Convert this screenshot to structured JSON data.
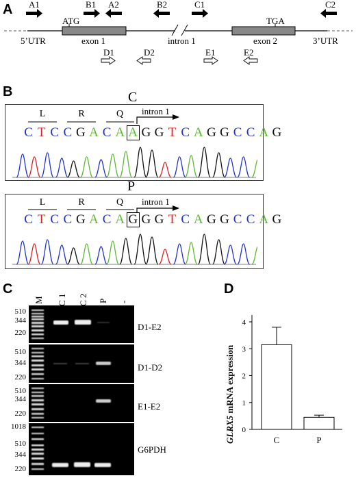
{
  "panels": {
    "a": "A",
    "b": "B",
    "c": "C",
    "d": "D"
  },
  "panel_a": {
    "primers_top": [
      "A1",
      "B1",
      "A2",
      "B2",
      "C1",
      "C2"
    ],
    "primers_bottom": [
      "D1",
      "D2",
      "E1",
      "E2"
    ],
    "labels": {
      "atg": "ATG",
      "tga": "TGA",
      "utr5": "5’UTR",
      "exon1": "exon 1",
      "intron1": "intron 1",
      "exon2": "exon 2",
      "utr3": "3’UTR"
    }
  },
  "panel_b": {
    "samples": [
      {
        "name": "C",
        "sequence": [
          "C",
          "T",
          "C",
          "C",
          "G",
          "A",
          "C",
          "A",
          "A",
          "G",
          "G",
          "T",
          "C",
          "A",
          "G",
          "G",
          "C",
          "C",
          "A",
          "G"
        ],
        "boxed_index": 8
      },
      {
        "name": "P",
        "sequence": [
          "C",
          "T",
          "C",
          "C",
          "G",
          "A",
          "C",
          "A",
          "G",
          "G",
          "G",
          "T",
          "C",
          "A",
          "G",
          "G",
          "C",
          "C",
          "A",
          "G"
        ],
        "boxed_index": 8
      }
    ],
    "amino_acids": [
      "L",
      "R",
      "Q"
    ],
    "intron_label": "intron 1",
    "base_colors": {
      "A": "#5fb833",
      "C": "#2233cc",
      "G": "#111111",
      "T": "#dd2222"
    }
  },
  "panel_c": {
    "lanes": [
      "M",
      "C 1",
      "C 2",
      "P",
      "-"
    ],
    "gels": [
      {
        "label": "D1-E2",
        "markers": [
          "510",
          "344",
          "220"
        ]
      },
      {
        "label": "D1-D2",
        "markers": [
          "510",
          "344",
          "220"
        ]
      },
      {
        "label": "E1-E2",
        "markers": [
          "510",
          "344",
          "220"
        ]
      },
      {
        "label": "G6PDH",
        "markers": [
          "1018",
          "510",
          "344",
          "220"
        ]
      }
    ]
  },
  "chart_data": {
    "type": "bar",
    "categories": [
      "C",
      "P"
    ],
    "values": [
      3.15,
      0.45
    ],
    "error": [
      0.65,
      0.08
    ],
    "ylabel": "GLRX5 mRNA expression",
    "ylabel_gene": "GLRX5",
    "ylabel_rest": " mRNA expression",
    "ylim": [
      0,
      4
    ],
    "yticks": [
      "0",
      "1",
      "2",
      "3",
      "4"
    ],
    "bar_color": "#ffffff"
  }
}
